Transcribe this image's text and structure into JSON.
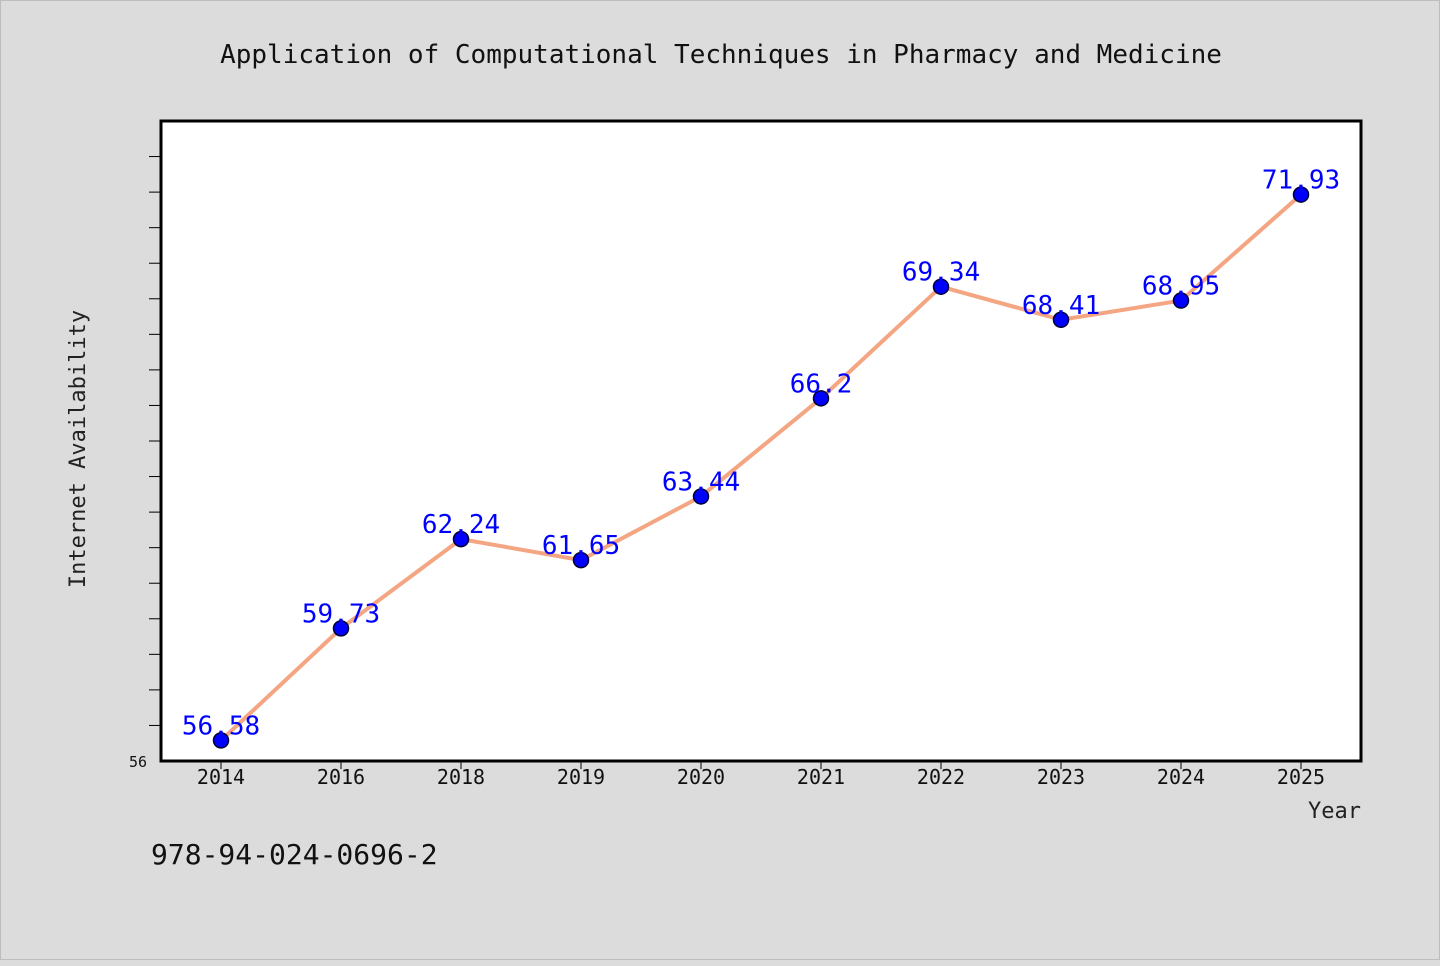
{
  "chart_data": {
    "type": "line",
    "title": "Application of Computational Techniques in Pharmacy and Medicine",
    "xlabel": "Year",
    "ylabel": "Internet Availability",
    "categories": [
      "2014",
      "2016",
      "2018",
      "2019",
      "2020",
      "2021",
      "2022",
      "2023",
      "2024",
      "2025"
    ],
    "series": [
      {
        "values": [
          56.58,
          59.73,
          62.24,
          61.65,
          63.44,
          66.2,
          69.34,
          68.41,
          68.95,
          71.93
        ],
        "labels": [
          "56.58",
          "59.73",
          "62.24",
          "61.65",
          "63.44",
          "66.2",
          "69.34",
          "68.41",
          "68.95",
          "71.93"
        ],
        "line_color": "#f4a582",
        "marker_color": "#0000ff"
      }
    ],
    "yticks": [
      "56"
    ],
    "ylim": [
      56,
      74
    ],
    "grid": false,
    "legend": "none",
    "plot_background": "#ffffff",
    "figure_background": "#dcdcdc"
  },
  "footer": {
    "isbn": "978-94-024-0696-2"
  }
}
